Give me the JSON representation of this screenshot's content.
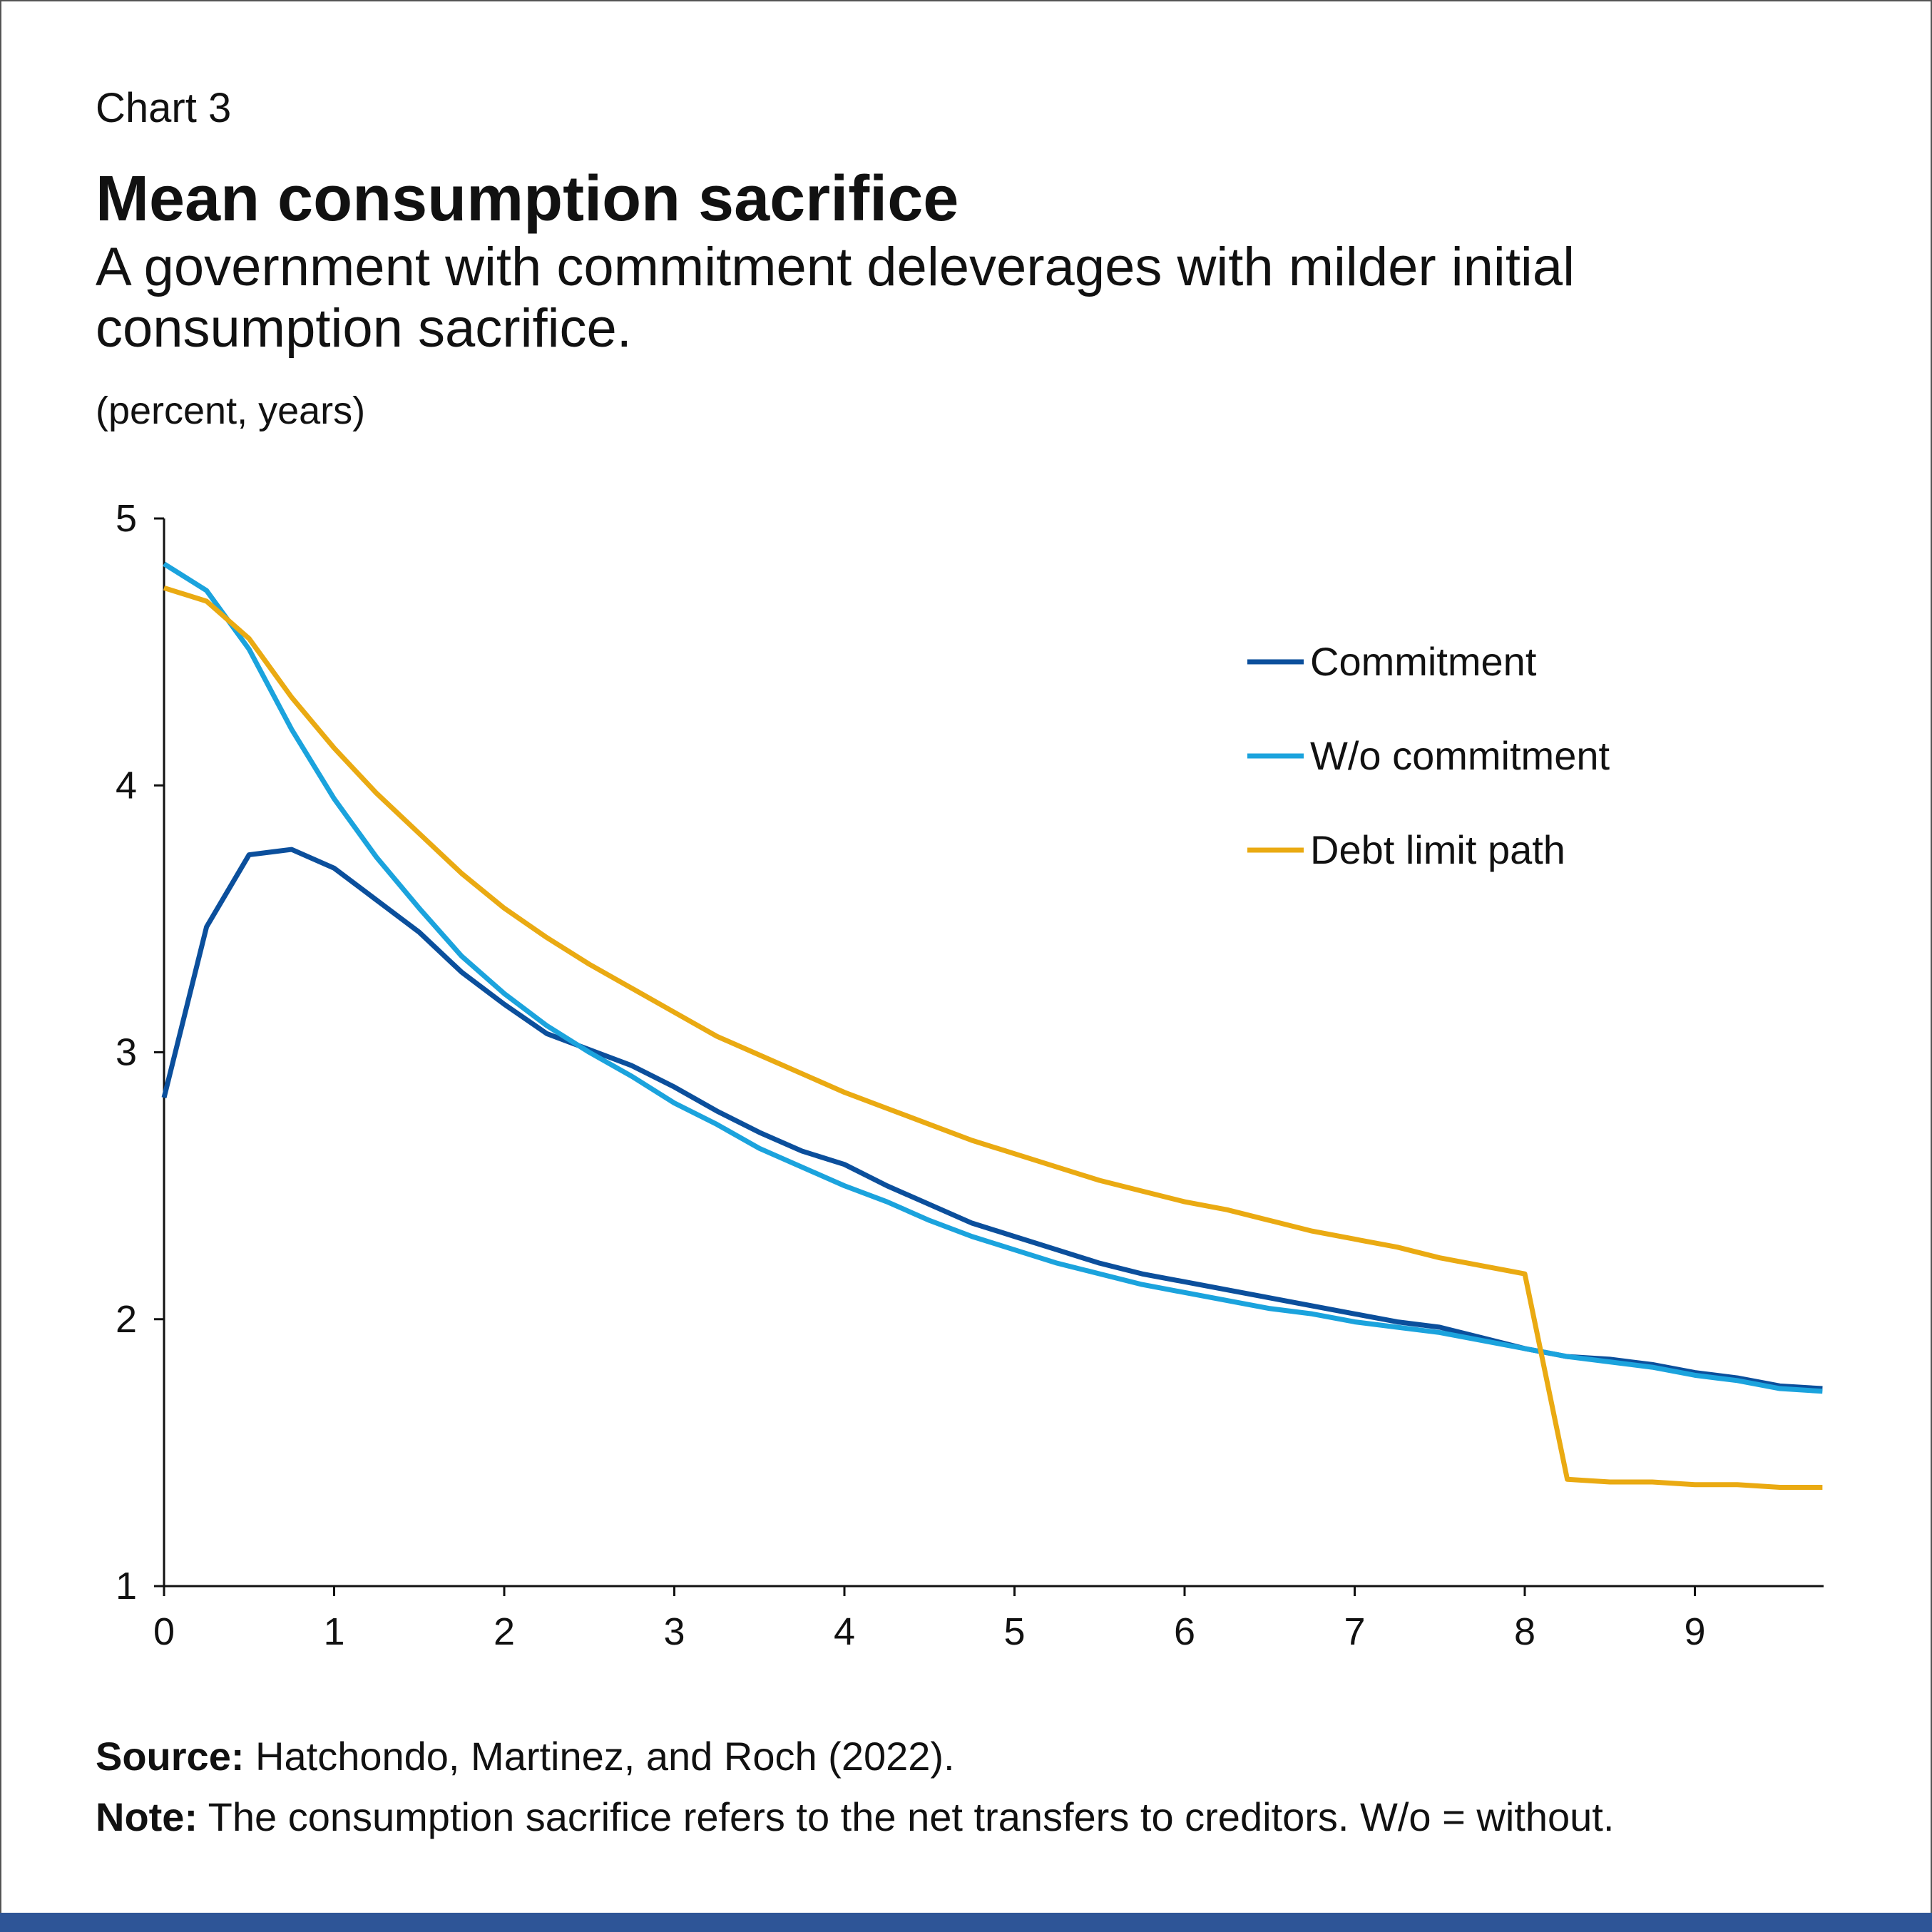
{
  "header": {
    "chart_label": "Chart 3",
    "title": "Mean consumption sacrifice",
    "subtitle": "A government with commitment deleverages with milder initial consumption sacrifice.",
    "units": "(percent, years)"
  },
  "footer": {
    "source_label": "Source:",
    "source_text": " Hatchondo, Martinez, and Roch (2022).",
    "note_label": "Note:",
    "note_text": " The consumption sacrifice refers to the net transfers to creditors. W/o = without."
  },
  "colors": {
    "commitment": "#0B4F9C",
    "without": "#1BA3DD",
    "debt_limit": "#EAAA12",
    "bar": "#2E5597"
  },
  "chart_data": {
    "type": "line",
    "title": "Mean consumption sacrifice",
    "xlabel": "years",
    "ylabel": "percent",
    "xlim": [
      0,
      9.75
    ],
    "ylim": [
      1,
      5
    ],
    "xticks": [
      "0",
      "1",
      "2",
      "3",
      "4",
      "5",
      "6",
      "7",
      "8",
      "9"
    ],
    "yticks": [
      "1",
      "2",
      "3",
      "4",
      "5"
    ],
    "grid": false,
    "legend_position": "top-right",
    "x": [
      0,
      0.25,
      0.5,
      0.75,
      1,
      1.25,
      1.5,
      1.75,
      2,
      2.25,
      2.5,
      2.75,
      3,
      3.25,
      3.5,
      3.75,
      4,
      4.25,
      4.5,
      4.75,
      5,
      5.25,
      5.5,
      5.75,
      6,
      6.25,
      6.5,
      6.75,
      7,
      7.25,
      7.5,
      7.75,
      8,
      8.25,
      8.5,
      8.75,
      9,
      9.25,
      9.5,
      9.75
    ],
    "series": [
      {
        "name": "Commitment",
        "color": "#0B4F9C",
        "values": [
          2.83,
          3.47,
          3.74,
          3.76,
          3.69,
          3.57,
          3.45,
          3.3,
          3.18,
          3.07,
          3.01,
          2.95,
          2.87,
          2.78,
          2.7,
          2.63,
          2.58,
          2.5,
          2.43,
          2.36,
          2.31,
          2.26,
          2.21,
          2.17,
          2.14,
          2.11,
          2.08,
          2.05,
          2.02,
          1.99,
          1.97,
          1.93,
          1.89,
          1.86,
          1.85,
          1.83,
          1.8,
          1.78,
          1.75,
          1.74
        ]
      },
      {
        "name": "W/o commitment",
        "color": "#1BA3DD",
        "values": [
          4.83,
          4.73,
          4.51,
          4.21,
          3.95,
          3.73,
          3.54,
          3.36,
          3.22,
          3.1,
          3.0,
          2.91,
          2.81,
          2.73,
          2.64,
          2.57,
          2.5,
          2.44,
          2.37,
          2.31,
          2.26,
          2.21,
          2.17,
          2.13,
          2.1,
          2.07,
          2.04,
          2.02,
          1.99,
          1.97,
          1.95,
          1.92,
          1.89,
          1.86,
          1.84,
          1.82,
          1.79,
          1.77,
          1.74,
          1.73
        ]
      },
      {
        "name": "Debt limit path",
        "color": "#EAAA12",
        "values": [
          4.74,
          4.69,
          4.55,
          4.33,
          4.14,
          3.97,
          3.82,
          3.67,
          3.54,
          3.43,
          3.33,
          3.24,
          3.15,
          3.06,
          2.99,
          2.92,
          2.85,
          2.79,
          2.73,
          2.67,
          2.62,
          2.57,
          2.52,
          2.48,
          2.44,
          2.41,
          2.37,
          2.33,
          2.3,
          2.27,
          2.23,
          2.2,
          2.17,
          1.4,
          1.39,
          1.39,
          1.38,
          1.38,
          1.37,
          1.37
        ]
      }
    ]
  }
}
